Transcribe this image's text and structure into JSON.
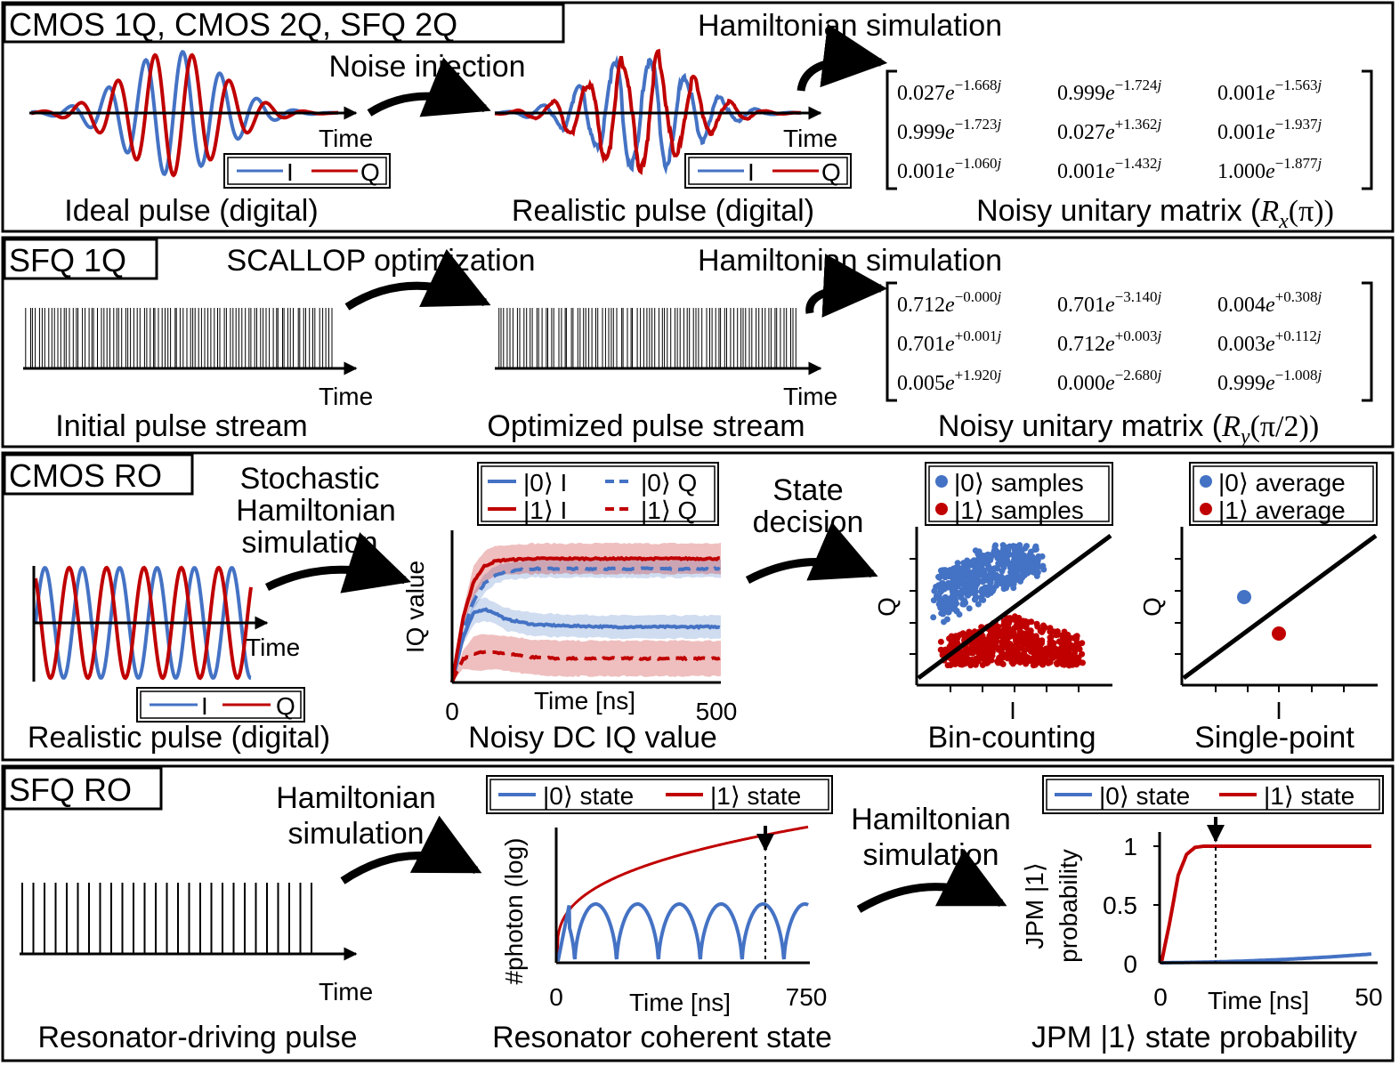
{
  "colors": {
    "blue": "#4472c4",
    "red": "#c00000",
    "black": "#000000"
  },
  "panel1": {
    "tag": "CMOS 1Q, CMOS 2Q, SFQ 2Q",
    "arrow1_label": "Noise injection",
    "arrow2_label": "Hamiltonian simulation",
    "ideal": {
      "time_label": "Time",
      "legend_i": "I",
      "legend_q": "Q",
      "caption": "Ideal pulse (digital)"
    },
    "realistic": {
      "time_label": "Time",
      "legend_i": "I",
      "legend_q": "Q",
      "caption": "Realistic pulse (digital)"
    },
    "matrix": {
      "rows": [
        [
          "0.027",
          "−1.668",
          "0.999",
          "−1.724",
          "0.001",
          "−1.563"
        ],
        [
          "0.999",
          "−1.723",
          "0.027",
          "+1.362",
          "0.001",
          "−1.937"
        ],
        [
          "0.001",
          "−1.060",
          "0.001",
          "−1.432",
          "1.000",
          "−1.877"
        ]
      ],
      "caption_prefix": "Noisy unitary matrix (",
      "caption_op": "R",
      "caption_sub": "x",
      "caption_arg": "(π))"
    }
  },
  "panel2": {
    "tag": "SFQ 1Q",
    "arrow1_label": "SCALLOP optimization",
    "arrow2_label": "Hamiltonian simulation",
    "initial": {
      "time_label": "Time",
      "caption": "Initial pulse stream"
    },
    "optimized": {
      "time_label": "Time",
      "caption": "Optimized pulse stream"
    },
    "matrix": {
      "rows": [
        [
          "0.712",
          "−0.000",
          "0.701",
          "−3.140",
          "0.004",
          "+0.308"
        ],
        [
          "0.701",
          "+0.001",
          "0.712",
          "+0.003",
          "0.003",
          "+0.112"
        ],
        [
          "0.005",
          "+1.920",
          "0.000",
          "−2.680",
          "0.999",
          "−1.008"
        ]
      ],
      "caption_prefix": "Noisy unitary matrix (",
      "caption_op": "R",
      "caption_sub": "y",
      "caption_arg": "(π/2))"
    }
  },
  "panel3": {
    "tag": "CMOS RO",
    "arrow1_label_lines": [
      "Stochastic",
      "Hamiltonian",
      "simulation"
    ],
    "arrow2_label_lines": [
      "State",
      "decision"
    ],
    "pulse": {
      "time_label": "Time",
      "legend_i": "I",
      "legend_q": "Q",
      "caption": "Realistic pulse (digital)"
    },
    "iq_chart": {
      "ylabel": "IQ value",
      "xlabel": "Time [ns]",
      "x_min_label": "0",
      "x_max_label": "500",
      "legend": [
        "|0⟩ I",
        "|0⟩ Q",
        "|1⟩ I",
        "|1⟩ Q"
      ],
      "caption": "Noisy DC IQ value"
    },
    "bin_chart": {
      "legend": [
        "|0⟩ samples",
        "|1⟩ samples"
      ],
      "xlabel": "I",
      "ylabel": "Q",
      "caption": "Bin-counting"
    },
    "single_chart": {
      "legend": [
        "|0⟩ average",
        "|1⟩ average"
      ],
      "xlabel": "I",
      "ylabel": "Q",
      "caption": "Single-point"
    }
  },
  "panel4": {
    "tag": "SFQ RO",
    "arrow1_label_lines": [
      "Hamiltonian",
      "simulation"
    ],
    "arrow2_label_lines": [
      "Hamiltonian",
      "simulation"
    ],
    "drive": {
      "time_label": "Time",
      "caption": "Resonator-driving pulse"
    },
    "photon_chart": {
      "legend": [
        "|0⟩ state",
        "|1⟩ state"
      ],
      "ylabel": "#photon (log)",
      "xlabel": "Time [ns]",
      "x_min_label": "0",
      "x_max_label": "750",
      "caption": "Resonator coherent state"
    },
    "jpm_chart": {
      "legend": [
        "|0⟩ state",
        "|1⟩ state"
      ],
      "ylabel_lines": [
        "JPM |1⟩",
        "probability"
      ],
      "xlabel": "Time [ns]",
      "x_min_label": "0",
      "x_max_label": "50",
      "y_ticks": [
        "1",
        "0.5",
        "0"
      ],
      "caption": "JPM |1⟩ state probability"
    }
  },
  "chart_data": [
    {
      "type": "line",
      "xlabel": "Time [ns]",
      "ylabel": "IQ value",
      "xlim": [
        0,
        500
      ],
      "series": [
        {
          "name": "|0⟩ I",
          "x": [
            0,
            20,
            40,
            60,
            80,
            100,
            150,
            200,
            300,
            400,
            500
          ],
          "y": [
            0,
            0.35,
            0.55,
            0.58,
            0.55,
            0.5,
            0.46,
            0.45,
            0.44,
            0.44,
            0.44
          ]
        },
        {
          "name": "|0⟩ Q",
          "x": [
            0,
            20,
            40,
            60,
            80,
            100,
            150,
            200,
            300,
            400,
            500
          ],
          "y": [
            0,
            0.4,
            0.65,
            0.78,
            0.85,
            0.88,
            0.9,
            0.9,
            0.9,
            0.9,
            0.9
          ]
        },
        {
          "name": "|1⟩ I",
          "x": [
            0,
            20,
            40,
            60,
            80,
            100,
            150,
            200,
            300,
            400,
            500
          ],
          "y": [
            0,
            0.5,
            0.8,
            0.92,
            0.96,
            0.97,
            0.98,
            0.98,
            0.98,
            0.98,
            0.98
          ]
        },
        {
          "name": "|1⟩ Q",
          "x": [
            0,
            20,
            40,
            60,
            80,
            100,
            150,
            200,
            300,
            400,
            500
          ],
          "y": [
            0,
            0.18,
            0.23,
            0.24,
            0.24,
            0.23,
            0.2,
            0.19,
            0.19,
            0.19,
            0.19
          ]
        }
      ]
    },
    {
      "type": "line",
      "xlabel": "Time [ns]",
      "ylabel": "#photon (log)",
      "xlim": [
        0,
        750
      ],
      "series": [
        {
          "name": "|0⟩ state",
          "shape": "periodic log-dips, six periods"
        },
        {
          "name": "|1⟩ state",
          "shape": "monotonic increase"
        }
      ]
    },
    {
      "type": "line",
      "xlabel": "Time [ns]",
      "ylabel": "JPM |1⟩ probability",
      "xlim": [
        0,
        50
      ],
      "ylim": [
        0,
        1
      ],
      "series": [
        {
          "name": "|0⟩ state",
          "x": [
            0,
            10,
            20,
            30,
            40,
            50
          ],
          "y": [
            0,
            0.005,
            0.015,
            0.03,
            0.05,
            0.075
          ]
        },
        {
          "name": "|1⟩ state",
          "x": [
            0,
            2,
            4,
            6,
            8,
            10,
            20,
            50
          ],
          "y": [
            0,
            0.35,
            0.75,
            0.93,
            0.99,
            1,
            1,
            1
          ]
        }
      ]
    }
  ]
}
